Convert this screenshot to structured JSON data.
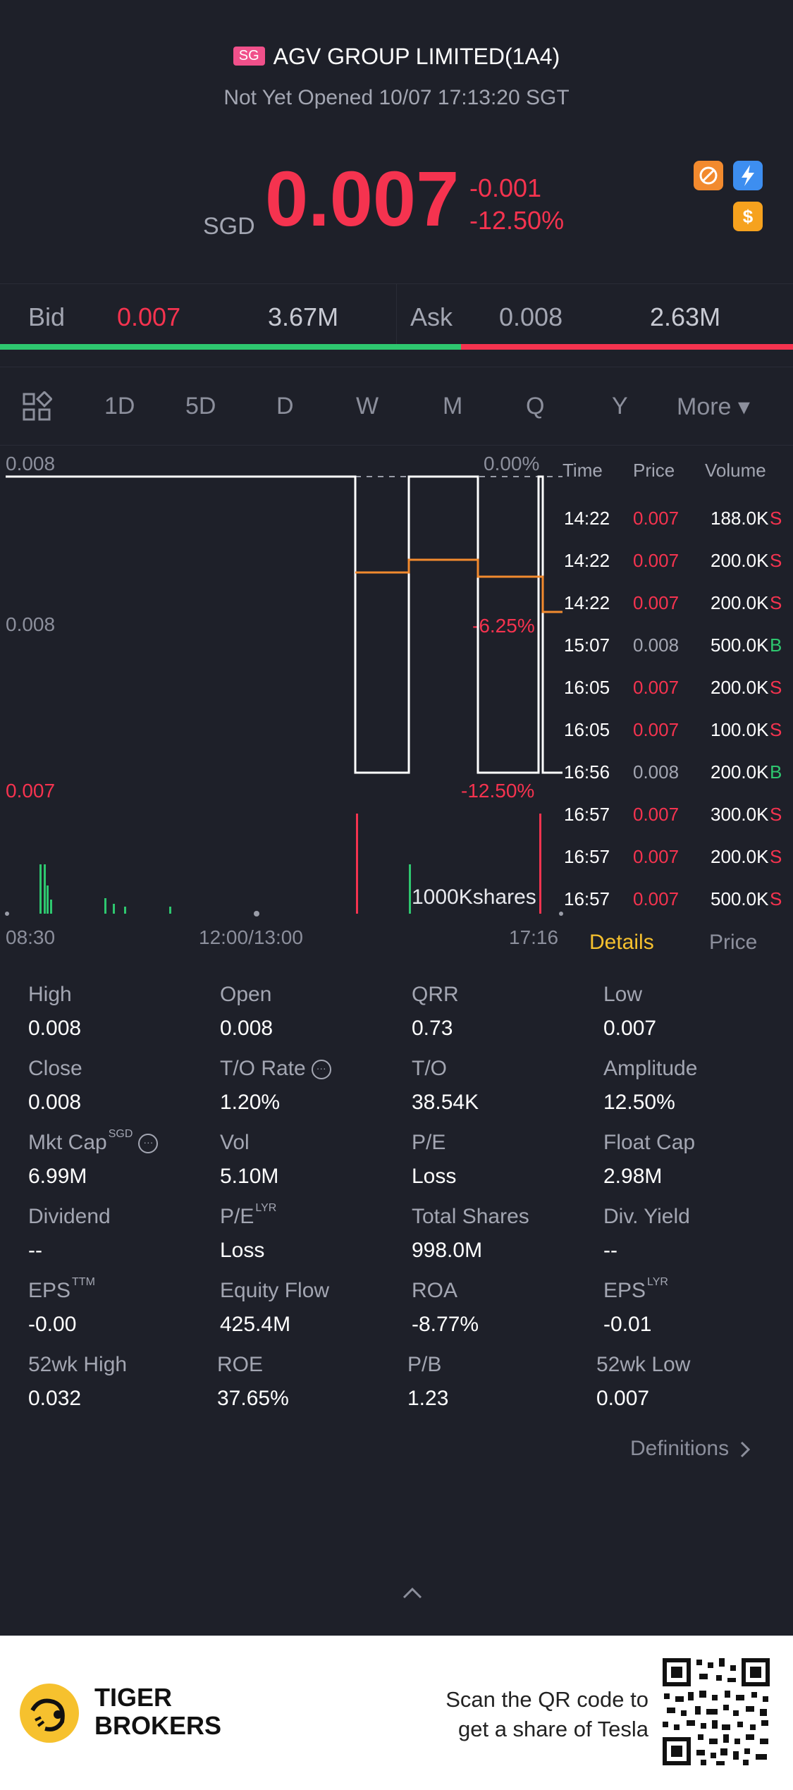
{
  "header": {
    "market_badge": "SG",
    "stock_name": "AGV GROUP LIMITED(1A4)",
    "status": "Not Yet Opened 10/07 17:13:20 SGT"
  },
  "quote": {
    "currency": "SGD",
    "last_price": "0.007",
    "change": "-0.001",
    "change_pct": "-12.50%"
  },
  "bid_ask": {
    "bid_label": "Bid",
    "bid_price": "0.007",
    "bid_size": "3.67M",
    "ask_label": "Ask",
    "ask_price": "0.008",
    "ask_size": "2.63M",
    "bid_share": 0.581
  },
  "tabs": [
    "1D",
    "5D",
    "D",
    "W",
    "M",
    "Q",
    "Y",
    "More ▾"
  ],
  "active_tab": "1D",
  "chart": {
    "y_top": "0.008",
    "y_mid": "0.008",
    "y_bottom": "0.007",
    "pct_top": "0.00%",
    "pct_mid": "-6.25%",
    "pct_bottom": "-12.50%",
    "volume_label": "1000Kshares",
    "x_start": "08:30",
    "x_mid": "12:00/13:00",
    "x_end": "17:16"
  },
  "chart_data": {
    "type": "line",
    "x": [
      "14:22",
      "14:22",
      "15:07",
      "16:05",
      "16:56",
      "16:57"
    ],
    "series": [
      {
        "values": [
          0.007,
          0.007,
          0.008,
          0.007,
          0.008,
          0.007
        ]
      }
    ],
    "ylim": [
      0.007,
      0.008
    ]
  },
  "trades": {
    "headers": [
      "Time",
      "Price",
      "Volume"
    ],
    "rows": [
      {
        "time": "14:22",
        "price": "0.007",
        "volume": "188.0K",
        "side": "S"
      },
      {
        "time": "14:22",
        "price": "0.007",
        "volume": "200.0K",
        "side": "S"
      },
      {
        "time": "14:22",
        "price": "0.007",
        "volume": "200.0K",
        "side": "S"
      },
      {
        "time": "15:07",
        "price": "0.008",
        "volume": "500.0K",
        "side": "B"
      },
      {
        "time": "16:05",
        "price": "0.007",
        "volume": "200.0K",
        "side": "S"
      },
      {
        "time": "16:05",
        "price": "0.007",
        "volume": "100.0K",
        "side": "S"
      },
      {
        "time": "16:56",
        "price": "0.008",
        "volume": "200.0K",
        "side": "B"
      },
      {
        "time": "16:57",
        "price": "0.007",
        "volume": "300.0K",
        "side": "S"
      },
      {
        "time": "16:57",
        "price": "0.007",
        "volume": "200.0K",
        "side": "S"
      },
      {
        "time": "16:57",
        "price": "0.007",
        "volume": "500.0K",
        "side": "S"
      }
    ]
  },
  "panel_tabs": {
    "details": "Details",
    "price": "Price"
  },
  "stats": [
    {
      "label": "High",
      "value": "0.008"
    },
    {
      "label": "Open",
      "value": "0.008"
    },
    {
      "label": "QRR",
      "value": "0.73"
    },
    {
      "label": "Low",
      "value": "0.007"
    },
    {
      "label": "Close",
      "value": "0.008"
    },
    {
      "label": "T/O Rate",
      "value": "1.20%"
    },
    {
      "label": "T/O",
      "value": "38.54K"
    },
    {
      "label": "Amplitude",
      "value": "12.50%"
    },
    {
      "label": "Mkt Cap",
      "sup": "SGD",
      "value": "6.99M"
    },
    {
      "label": "Vol",
      "value": "5.10M"
    },
    {
      "label": "P/E",
      "value": "Loss"
    },
    {
      "label": "Float Cap",
      "value": "2.98M"
    },
    {
      "label": "Dividend",
      "value": "--"
    },
    {
      "label": "P/E",
      "sup": "LYR",
      "value": "Loss"
    },
    {
      "label": "Total Shares",
      "value": "998.0M"
    },
    {
      "label": "Div. Yield",
      "value": "--"
    },
    {
      "label": "EPS",
      "sup": "TTM",
      "value": "-0.00"
    },
    {
      "label": "Equity Flow",
      "value": "425.4M"
    },
    {
      "label": "ROA",
      "value": "-8.77%"
    },
    {
      "label": "EPS",
      "sup": "LYR",
      "value": "-0.01"
    },
    {
      "label": "52wk High",
      "value": "0.032"
    },
    {
      "label": "ROE",
      "value": "37.65%"
    },
    {
      "label": "P/B",
      "value": "1.23"
    },
    {
      "label": "52wk Low",
      "value": "0.007"
    }
  ],
  "definitions_label": "Definitions",
  "footer": {
    "brand_line1": "TIGER",
    "brand_line2": "BROKERS",
    "promo_line1": "Scan the QR code to",
    "promo_line2": "get a share of Tesla"
  }
}
